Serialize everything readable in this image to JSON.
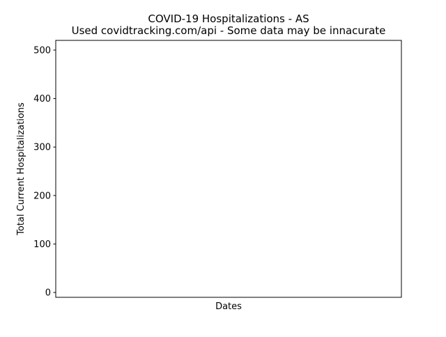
{
  "chart_data": {
    "type": "line",
    "title": "COVID-19 Hospitalizations - AS",
    "subtitle": "Used covidtracking.com/api - Some data may be innacurate",
    "xlabel": "Dates",
    "ylabel": "Total Current Hospitalizations",
    "x": [],
    "series": [
      {
        "values": []
      }
    ],
    "yticks": [
      0,
      100,
      200,
      300,
      400,
      500
    ],
    "ytick_labels": [
      "0",
      "100",
      "200",
      "300",
      "400",
      "500"
    ],
    "ylim": [
      -10,
      520
    ],
    "grid": false,
    "legend": "none"
  }
}
